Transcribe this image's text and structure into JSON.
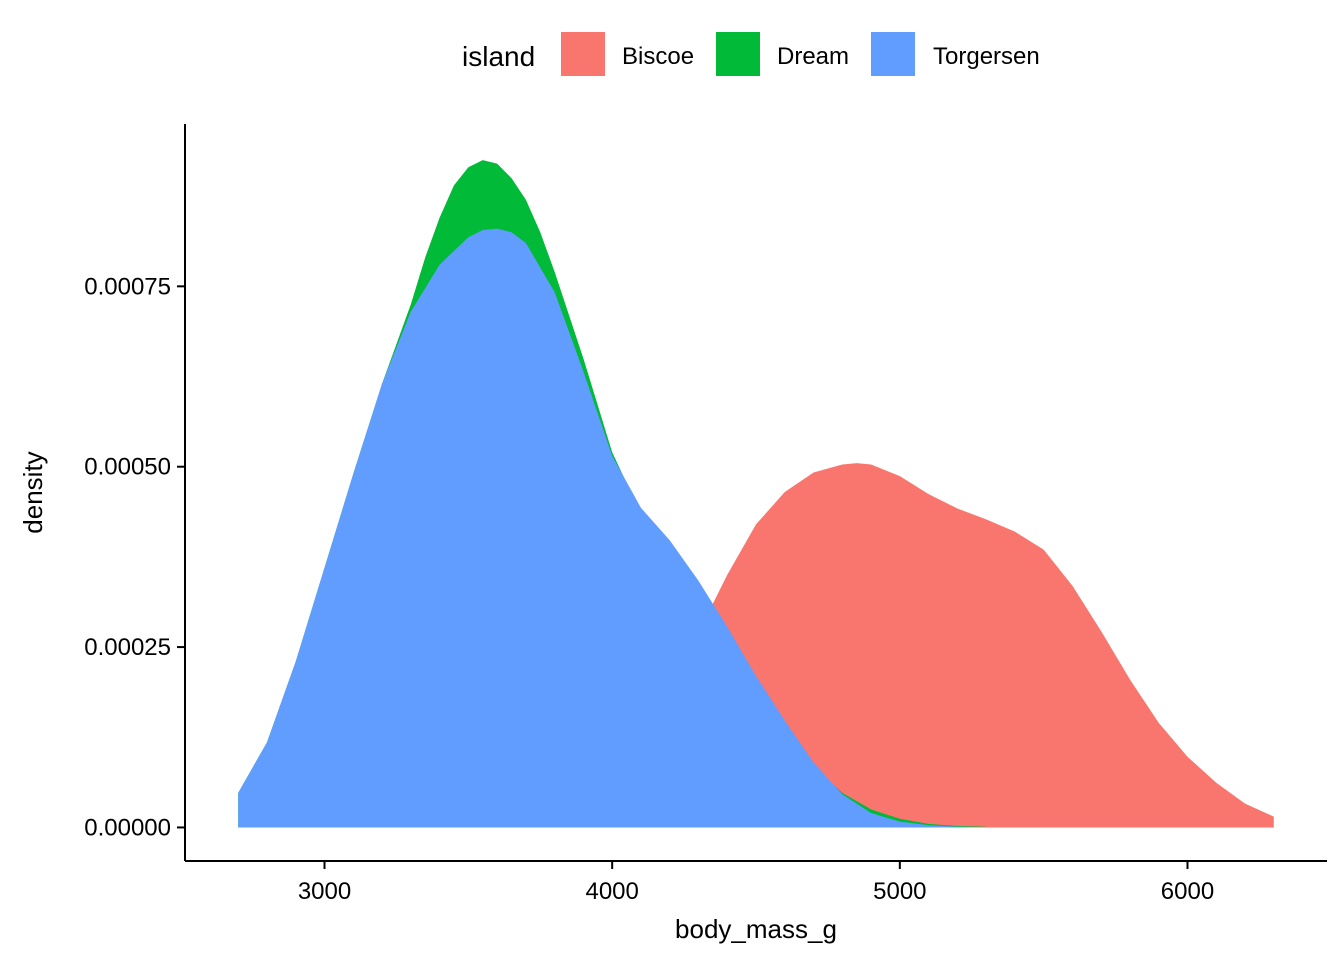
{
  "chart_data": {
    "type": "area",
    "subtype": "density",
    "xlabel": "body_mass_g",
    "ylabel": "density",
    "xlim": [
      2515,
      6485
    ],
    "ylim": [
      -4.65e-05,
      0.000975
    ],
    "x_ticks": [
      3000,
      4000,
      5000,
      6000
    ],
    "x_tick_labels": [
      "3000",
      "4000",
      "5000",
      "6000"
    ],
    "y_ticks": [
      0,
      0.00025,
      0.0005,
      0.00075
    ],
    "y_tick_labels": [
      "0.00000",
      "0.00025",
      "0.00050",
      "0.00075"
    ],
    "grid": false,
    "legend": {
      "title": "island",
      "position": "top",
      "entries": [
        "Biscoe",
        "Dream",
        "Torgersen"
      ]
    },
    "series": [
      {
        "name": "Biscoe",
        "color": "#F8766D",
        "x": [
          2700,
          2900,
          3000,
          3200,
          3400,
          3550,
          3700,
          3850,
          4000,
          4100,
          4200,
          4300,
          4350,
          4400,
          4500,
          4600,
          4700,
          4800,
          4850,
          4900,
          5000,
          5100,
          5200,
          5300,
          5400,
          5500,
          5600,
          5700,
          5800,
          5900,
          6000,
          6100,
          6200,
          6300
        ],
        "y": [
          1e-06,
          1e-06,
          2e-06,
          5e-06,
          1e-05,
          1.5e-05,
          2e-05,
          4e-05,
          8e-05,
          0.00013,
          0.0002,
          0.00027,
          0.00031,
          0.00035,
          0.00042,
          0.000465,
          0.000492,
          0.000503,
          0.000505,
          0.000503,
          0.000487,
          0.000462,
          0.000442,
          0.000427,
          0.00041,
          0.000385,
          0.000335,
          0.000272,
          0.000205,
          0.000145,
          9.8e-05,
          6.2e-05,
          3.3e-05,
          1.5e-05
        ]
      },
      {
        "name": "Dream",
        "color": "#00BA38",
        "x": [
          2700,
          2800,
          2900,
          3000,
          3100,
          3200,
          3300,
          3350,
          3400,
          3450,
          3500,
          3550,
          3600,
          3650,
          3700,
          3750,
          3800,
          3900,
          4000,
          4100,
          4200,
          4300,
          4400,
          4500,
          4600,
          4700,
          4800,
          4900,
          5000,
          5100,
          5200,
          5300
        ],
        "y": [
          4.8e-05,
          0.000118,
          0.00023,
          0.00036,
          0.00049,
          0.000615,
          0.000725,
          0.00079,
          0.000845,
          0.00089,
          0.000915,
          0.000925,
          0.00092,
          0.0009,
          0.00087,
          0.000825,
          0.00077,
          0.00065,
          0.00052,
          0.000435,
          0.000382,
          0.00033,
          0.000268,
          0.0002,
          0.000138,
          8.5e-05,
          4.8e-05,
          2.5e-05,
          1.2e-05,
          5e-06,
          2e-06,
          1e-06
        ]
      },
      {
        "name": "Torgersen",
        "color": "#619CFF",
        "x": [
          2700,
          2800,
          2900,
          3000,
          3100,
          3200,
          3300,
          3400,
          3500,
          3550,
          3600,
          3650,
          3700,
          3800,
          3900,
          4000,
          4100,
          4200,
          4300,
          4400,
          4500,
          4600,
          4700,
          4800,
          4900,
          5000,
          5100,
          5200,
          5300,
          5500,
          5700,
          6000,
          6300
        ],
        "y": [
          4.8e-05,
          0.000118,
          0.00023,
          0.00036,
          0.00049,
          0.000615,
          0.000715,
          0.00078,
          0.000818,
          0.000828,
          0.00083,
          0.000825,
          0.00081,
          0.000742,
          0.000632,
          0.000515,
          0.000443,
          0.000398,
          0.000342,
          0.000278,
          0.00021,
          0.000148,
          9e-05,
          4.6e-05,
          2e-05,
          8e-06,
          3e-06,
          1e-06,
          5e-07,
          3e-07,
          3e-07,
          2e-07,
          2e-07
        ]
      }
    ]
  }
}
